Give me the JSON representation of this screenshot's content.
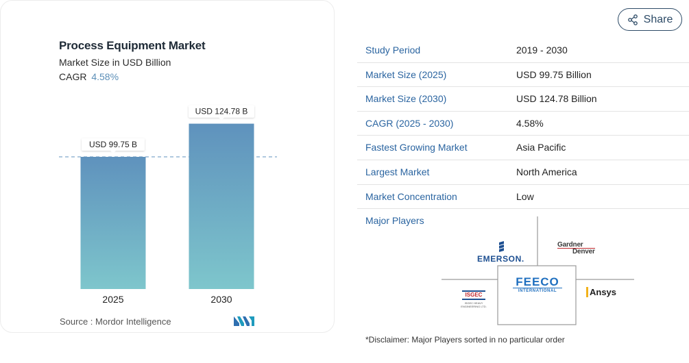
{
  "chart_data": {
    "type": "bar",
    "title": "Process Equipment Market",
    "subtitle": "Market Size in USD Billion",
    "cagr_label": "CAGR",
    "cagr_value": "4.58%",
    "categories": [
      "2025",
      "2030"
    ],
    "values": [
      99.75,
      124.78
    ],
    "data_labels": [
      "USD 99.75 B",
      "USD 124.78 B"
    ],
    "colors": {
      "bar_top": "#5f92bd",
      "bar_bottom": "#7ec6cc",
      "reference_line": "#5f92bd"
    }
  },
  "source": "Source :  Mordor Intelligence",
  "share": {
    "label": "Share",
    "icon": "share-icon"
  },
  "info": {
    "rows": [
      {
        "key": "Study Period",
        "value": "2019 - 2030"
      },
      {
        "key": "Market Size (2025)",
        "value": "USD 99.75 Billion"
      },
      {
        "key": "Market Size (2030)",
        "value": "USD 124.78 Billion"
      },
      {
        "key": "CAGR (2025 - 2030)",
        "value": "4.58%"
      },
      {
        "key": "Fastest Growing Market",
        "value": "Asia Pacific"
      },
      {
        "key": "Largest Market",
        "value": "North America"
      },
      {
        "key": "Market Concentration",
        "value": "Low"
      }
    ],
    "players_label": "Major Players",
    "players": {
      "emerson": "EMERSON.",
      "gardner_1": "Gardner",
      "gardner_2": "Denver",
      "feeco_1": "FEECO",
      "feeco_2": "INTERNATIONAL",
      "isgec": "ISGEC",
      "isgec_sub_1": "ISGEC HEAVY",
      "isgec_sub_2": "ENGINEERING LTD.",
      "ansys": "Ansys"
    },
    "disclaimer": "*Disclaimer: Major Players sorted in no particular order"
  }
}
